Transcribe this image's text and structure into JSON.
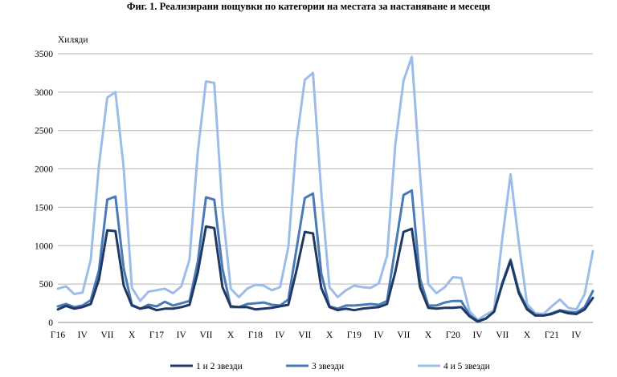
{
  "title": "Фиг. 1. Реализирани нощувки по категории на местата за настаняване и месеци",
  "chart_data": {
    "type": "line",
    "title": "Фиг. 1. Реализирани нощувки по категории на местата за настаняване и месеци",
    "ylabel": "Хиляди",
    "xlabel": "",
    "ylim": [
      0,
      3500
    ],
    "yticks": [
      0,
      500,
      1000,
      1500,
      2000,
      2500,
      3000,
      3500
    ],
    "grid": true,
    "legend_position": "bottom",
    "x": [
      "Jan 2016",
      "Feb 2016",
      "Mar 2016",
      "Apr 2016",
      "May 2016",
      "Jun 2016",
      "Jul 2016",
      "Aug 2016",
      "Sep 2016",
      "Oct 2016",
      "Nov 2016",
      "Dec 2016",
      "Jan 2017",
      "Feb 2017",
      "Mar 2017",
      "Apr 2017",
      "May 2017",
      "Jun 2017",
      "Jul 2017",
      "Aug 2017",
      "Sep 2017",
      "Oct 2017",
      "Nov 2017",
      "Dec 2017",
      "Jan 2018",
      "Feb 2018",
      "Mar 2018",
      "Apr 2018",
      "May 2018",
      "Jun 2018",
      "Jul 2018",
      "Aug 2018",
      "Sep 2018",
      "Oct 2018",
      "Nov 2018",
      "Dec 2018",
      "Jan 2019",
      "Feb 2019",
      "Mar 2019",
      "Apr 2019",
      "May 2019",
      "Jun 2019",
      "Jul 2019",
      "Aug 2019",
      "Sep 2019",
      "Oct 2019",
      "Nov 2019",
      "Dec 2019",
      "Jan 2020",
      "Feb 2020",
      "Mar 2020",
      "Apr 2020",
      "May 2020",
      "Jun 2020",
      "Jul 2020",
      "Aug 2020",
      "Sep 2020",
      "Oct 2020",
      "Nov 2020",
      "Dec 2020",
      "Jan 2021",
      "Feb 2021",
      "Mar 2021",
      "Apr 2021",
      "May 2021",
      "Jun 2021"
    ],
    "xtick_labels": [
      {
        "label": "Г16",
        "month": 1
      },
      {
        "label": "IV",
        "month": 4
      },
      {
        "label": "VII",
        "month": 7
      },
      {
        "label": "X",
        "month": 10
      },
      {
        "label": "Г17",
        "month": 13
      },
      {
        "label": "IV",
        "month": 16
      },
      {
        "label": "VII",
        "month": 19
      },
      {
        "label": "X",
        "month": 22
      },
      {
        "label": "Г18",
        "month": 25
      },
      {
        "label": "IV",
        "month": 28
      },
      {
        "label": "VII",
        "month": 31
      },
      {
        "label": "X",
        "month": 34
      },
      {
        "label": "Г19",
        "month": 37
      },
      {
        "label": "IV",
        "month": 40
      },
      {
        "label": "VII",
        "month": 43
      },
      {
        "label": "X",
        "month": 46
      },
      {
        "label": "Г20",
        "month": 49
      },
      {
        "label": "IV",
        "month": 52
      },
      {
        "label": "VII",
        "month": 55
      },
      {
        "label": "X",
        "month": 58
      },
      {
        "label": "Г21",
        "month": 61
      },
      {
        "label": "IV",
        "month": 64
      }
    ],
    "series": [
      {
        "name": "1 и 2 звезди",
        "color": "#1f3864",
        "values": [
          170,
          215,
          180,
          200,
          240,
          560,
          1200,
          1190,
          480,
          220,
          180,
          200,
          160,
          180,
          180,
          200,
          230,
          650,
          1250,
          1230,
          460,
          210,
          200,
          200,
          170,
          180,
          190,
          210,
          230,
          680,
          1180,
          1160,
          450,
          200,
          160,
          180,
          160,
          180,
          190,
          200,
          240,
          660,
          1180,
          1220,
          460,
          190,
          180,
          190,
          190,
          200,
          80,
          10,
          50,
          140,
          500,
          800,
          380,
          170,
          90,
          90,
          110,
          150,
          120,
          110,
          170,
          320
        ]
      },
      {
        "name": "3 звезди",
        "color": "#4a7ab5",
        "values": [
          210,
          240,
          200,
          220,
          290,
          680,
          1600,
          1640,
          700,
          230,
          180,
          230,
          210,
          270,
          220,
          250,
          280,
          790,
          1630,
          1600,
          700,
          200,
          200,
          240,
          250,
          260,
          230,
          220,
          300,
          960,
          1620,
          1680,
          640,
          210,
          180,
          220,
          220,
          230,
          240,
          230,
          280,
          980,
          1660,
          1720,
          570,
          220,
          220,
          260,
          280,
          280,
          100,
          20,
          50,
          140,
          520,
          820,
          410,
          190,
          100,
          90,
          120,
          160,
          140,
          130,
          200,
          410
        ]
      },
      {
        "name": "4 и 5 звезди",
        "color": "#9dbde8",
        "values": [
          440,
          470,
          370,
          390,
          820,
          2050,
          2930,
          3000,
          2010,
          450,
          280,
          400,
          420,
          440,
          380,
          470,
          820,
          2220,
          3140,
          3120,
          1480,
          440,
          330,
          440,
          490,
          480,
          420,
          460,
          980,
          2360,
          3160,
          3250,
          1690,
          460,
          330,
          420,
          480,
          460,
          450,
          510,
          870,
          2320,
          3150,
          3460,
          1940,
          500,
          380,
          460,
          590,
          580,
          150,
          30,
          100,
          160,
          1100,
          1930,
          1040,
          240,
          120,
          110,
          210,
          300,
          190,
          170,
          370,
          930
        ]
      }
    ]
  }
}
